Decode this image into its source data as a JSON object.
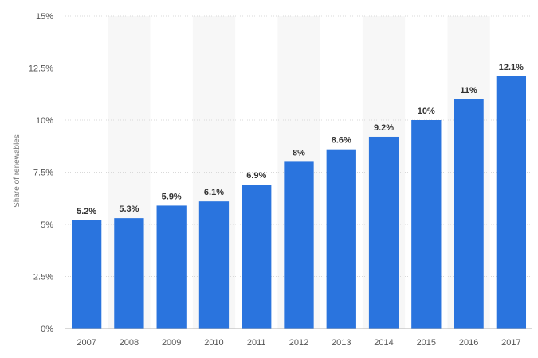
{
  "chart_data": {
    "type": "bar",
    "title": "",
    "xlabel": "",
    "ylabel": "Share of renewables",
    "categories": [
      "2007",
      "2008",
      "2009",
      "2010",
      "2011",
      "2012",
      "2013",
      "2014",
      "2015",
      "2016",
      "2017"
    ],
    "values": [
      5.2,
      5.3,
      5.9,
      6.1,
      6.9,
      8.0,
      8.6,
      9.2,
      10.0,
      11.0,
      12.1
    ],
    "value_labels": [
      "5.2%",
      "5.3%",
      "5.9%",
      "6.1%",
      "6.9%",
      "8%",
      "8.6%",
      "9.2%",
      "10%",
      "11%",
      "12.1%"
    ],
    "ylim": [
      0,
      15
    ],
    "yticks": [
      0,
      2.5,
      5,
      7.5,
      10,
      12.5,
      15
    ],
    "ytick_labels": [
      "0%",
      "2.5%",
      "5%",
      "7.5%",
      "10%",
      "12.5%",
      "15%"
    ],
    "grid": true,
    "legend": "none",
    "colors": {
      "bar": "#2a74de",
      "band": "#f7f7f7",
      "grid": "#d9d9d9",
      "baseline": "#b0b0b0"
    }
  }
}
